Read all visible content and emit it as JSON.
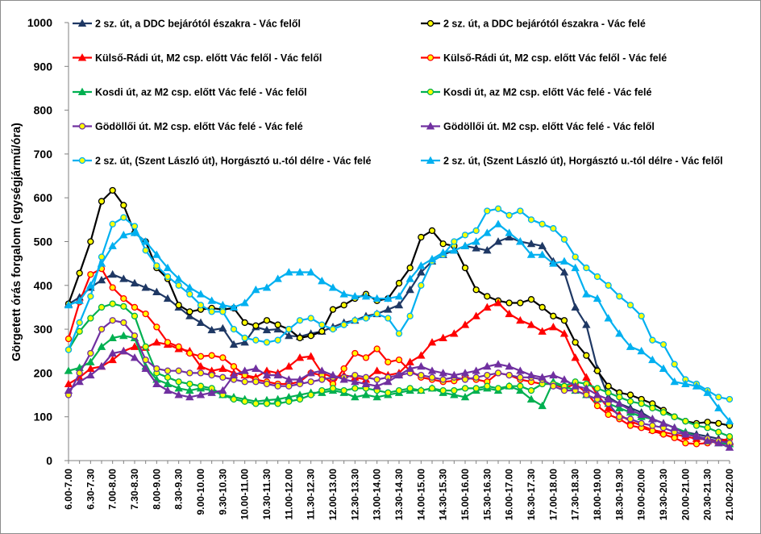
{
  "chart_data": {
    "type": "line",
    "ylabel": "Görgetett órás forgalom (egységjármű/óra)",
    "xlabel": "",
    "ylim": [
      0,
      1000
    ],
    "yticks": [
      0,
      100,
      200,
      300,
      400,
      500,
      600,
      700,
      800,
      900,
      1000
    ],
    "grid": false,
    "legend_position": "top",
    "categories": [
      "6.00-7.00",
      "6.15-7.15",
      "6.30-7.30",
      "6.45-7.45",
      "7.00-8.00",
      "7.15-8.15",
      "7.30-8.30",
      "7.45-8.45",
      "8.00-9.00",
      "8.15-9.15",
      "8.30-9.30",
      "8.45-9.45",
      "9.00-10.00",
      "9.15-10.15",
      "9.30-10.30",
      "9.45-10.45",
      "10.00-11.00",
      "10.15-11.15",
      "10.30-11.30",
      "10.45-11.45",
      "11.00-12.00",
      "11.15-12.15",
      "11.30-12.30",
      "11.45-12.45",
      "12.00-13.00",
      "12.15-13.15",
      "12.30-13.30",
      "12.45-13.45",
      "13.00-14.00",
      "13.15-14.15",
      "13.30-14.30",
      "13.45-14.45",
      "14.00-15.00",
      "14.15-15.15",
      "14.30-15.30",
      "14.45-15.45",
      "15.00-16.00",
      "15.15-16.15",
      "15.30-16.30",
      "15.45-16.45",
      "16.00-17.00",
      "16.15-17.15",
      "16.30-17.30",
      "16.45-17.45",
      "17.00-18.00",
      "17.15-18.15",
      "17.30-18.30",
      "17.45-18.45",
      "18.00-19.00",
      "18.15-19.15",
      "18.30-19.30",
      "18.45-19.45",
      "19.00-20.00",
      "19.15-20.15",
      "19.30-20.30",
      "19.45-20.45",
      "20.00-21.00",
      "20.15-21.15",
      "20.30-21.30",
      "20.45-21.45",
      "21.00-22.00"
    ],
    "x_tick_labels": [
      "6.00-7.00",
      "6.30-7.30",
      "7.00-8.00",
      "7.30-8.30",
      "8.00-9.00",
      "8.30-9.30",
      "9.00-10.00",
      "9.30-10.30",
      "10.00-11.00",
      "10.30-11.30",
      "11.00-12.00",
      "11.30-12.30",
      "12.00-13.00",
      "12.30-13.30",
      "13.00-14.00",
      "13.30-14.30",
      "14.00-15.00",
      "14.30-15.30",
      "15.00-16.00",
      "15.30-16.30",
      "16.00-17.00",
      "16.30-17.30",
      "17.00-18.00",
      "17.30-18.30",
      "18.00-19.00",
      "18.30-19.30",
      "19.00-20.00",
      "19.30-20.30",
      "20.00-21.00",
      "20.30-21.30",
      "21.00-22.00"
    ],
    "series": [
      {
        "name": "2 sz. út, a DDC bejárótól északra - Vác felől",
        "color": "#1F3864",
        "marker": "triangle",
        "marker_fill": "#1F3864",
        "values": [
          357,
          373,
          395,
          412,
          425,
          415,
          405,
          395,
          385,
          370,
          350,
          330,
          315,
          298,
          302,
          265,
          270,
          305,
          298,
          300,
          285,
          283,
          290,
          295,
          305,
          315,
          320,
          330,
          335,
          345,
          355,
          390,
          430,
          455,
          470,
          480,
          490,
          485,
          480,
          500,
          510,
          500,
          495,
          490,
          455,
          430,
          350,
          310,
          210,
          145,
          130,
          120,
          110,
          95,
          85,
          75,
          65,
          60,
          55,
          50,
          45
        ]
      },
      {
        "name": "2 sz. út, a DDC bejárótól északra - Vác felé",
        "color": "#000000",
        "marker": "circle",
        "marker_fill": "#FFFF00",
        "values": [
          358,
          428,
          500,
          592,
          617,
          583,
          520,
          500,
          440,
          415,
          355,
          340,
          345,
          348,
          345,
          348,
          315,
          308,
          320,
          310,
          300,
          280,
          285,
          295,
          345,
          355,
          370,
          380,
          365,
          370,
          405,
          440,
          510,
          525,
          495,
          490,
          440,
          390,
          375,
          365,
          360,
          360,
          368,
          350,
          330,
          320,
          270,
          240,
          205,
          170,
          155,
          150,
          140,
          130,
          115,
          100,
          90,
          85,
          88,
          85,
          80
        ]
      },
      {
        "name": "Külső-Rádi út, M2 csp. előtt Vác felől - Vác felől",
        "color": "#FF0000",
        "marker": "triangle",
        "marker_fill": "#FF0000",
        "values": [
          175,
          190,
          210,
          215,
          230,
          250,
          260,
          258,
          270,
          265,
          255,
          250,
          215,
          205,
          210,
          200,
          195,
          190,
          205,
          200,
          215,
          235,
          238,
          200,
          190,
          195,
          190,
          185,
          205,
          195,
          200,
          225,
          240,
          270,
          280,
          290,
          310,
          330,
          350,
          360,
          335,
          320,
          310,
          295,
          305,
          290,
          235,
          190,
          150,
          120,
          105,
          90,
          80,
          70,
          65,
          60,
          55,
          50,
          48,
          45,
          42
        ]
      },
      {
        "name": "Külső-Rádi út, M2 csp. előtt Vác felől - Vác felé",
        "color": "#FF0000",
        "marker": "circle",
        "marker_fill": "#FFFF00",
        "values": [
          278,
          362,
          425,
          438,
          395,
          370,
          350,
          335,
          305,
          270,
          260,
          245,
          238,
          240,
          235,
          215,
          195,
          185,
          180,
          175,
          175,
          180,
          200,
          195,
          175,
          210,
          245,
          235,
          255,
          225,
          230,
          205,
          190,
          185,
          180,
          182,
          190,
          185,
          180,
          200,
          195,
          185,
          180,
          175,
          175,
          165,
          175,
          155,
          125,
          105,
          95,
          80,
          75,
          68,
          60,
          52,
          40,
          38,
          40,
          45,
          50
        ]
      },
      {
        "name": "Kosdi út, az M2 csp. előtt Vác felé - Vác felől",
        "color": "#00B050",
        "marker": "triangle",
        "marker_fill": "#00B050",
        "values": [
          205,
          212,
          225,
          260,
          280,
          285,
          280,
          215,
          185,
          175,
          165,
          160,
          165,
          160,
          150,
          145,
          140,
          135,
          138,
          140,
          145,
          150,
          155,
          155,
          160,
          155,
          145,
          150,
          145,
          150,
          155,
          160,
          160,
          165,
          155,
          150,
          145,
          160,
          165,
          160,
          170,
          160,
          140,
          125,
          180,
          170,
          160,
          150,
          140,
          130,
          120,
          110,
          100,
          95,
          85,
          75,
          65,
          55,
          45,
          40,
          38
        ]
      },
      {
        "name": "Kosdi út, az M2 csp. előtt Vác felé - Vác felé",
        "color": "#00B050",
        "marker": "circle",
        "marker_fill": "#FFFF00",
        "values": [
          253,
          295,
          325,
          350,
          358,
          352,
          330,
          260,
          200,
          190,
          180,
          175,
          170,
          165,
          150,
          140,
          135,
          130,
          130,
          130,
          135,
          140,
          150,
          160,
          165,
          160,
          165,
          165,
          160,
          155,
          160,
          165,
          160,
          165,
          160,
          160,
          165,
          165,
          170,
          165,
          170,
          170,
          160,
          175,
          175,
          170,
          180,
          175,
          165,
          155,
          145,
          135,
          130,
          120,
          110,
          100,
          90,
          80,
          75,
          65,
          55
        ]
      },
      {
        "name": "Gödöllői út. M2 csp. előtt Vác felé - Vác felé",
        "color": "#7030A0",
        "marker": "circle",
        "marker_fill": "#FFFF00",
        "values": [
          150,
          200,
          245,
          300,
          320,
          315,
          285,
          230,
          210,
          205,
          205,
          200,
          200,
          195,
          190,
          185,
          180,
          180,
          175,
          170,
          170,
          175,
          180,
          185,
          190,
          190,
          195,
          190,
          185,
          190,
          195,
          200,
          195,
          190,
          185,
          190,
          185,
          190,
          195,
          200,
          195,
          190,
          190,
          185,
          170,
          160,
          160,
          150,
          140,
          130,
          100,
          95,
          85,
          80,
          75,
          65,
          60,
          55,
          50,
          45,
          40
        ]
      },
      {
        "name": "Gödöllői út. M2 csp. előtt Vác felé - Vác felől",
        "color": "#7030A0",
        "marker": "triangle",
        "marker_fill": "#7030A0",
        "values": [
          160,
          180,
          195,
          215,
          245,
          250,
          235,
          210,
          175,
          160,
          150,
          145,
          150,
          155,
          160,
          195,
          205,
          210,
          195,
          195,
          185,
          185,
          200,
          205,
          195,
          185,
          180,
          175,
          170,
          180,
          195,
          210,
          215,
          205,
          200,
          195,
          200,
          205,
          215,
          220,
          215,
          205,
          195,
          190,
          195,
          185,
          170,
          165,
          150,
          140,
          130,
          115,
          105,
          95,
          85,
          75,
          60,
          55,
          45,
          40,
          30
        ]
      },
      {
        "name": "2 sz. út, (Szent László út), Horgásztó u.-tól délre - Vác felé",
        "color": "#00B0F0",
        "marker": "circle",
        "marker_fill": "#FFFF00",
        "values": [
          253,
          315,
          375,
          465,
          540,
          555,
          535,
          480,
          445,
          420,
          400,
          380,
          355,
          340,
          340,
          300,
          280,
          275,
          270,
          275,
          300,
          320,
          325,
          310,
          300,
          310,
          320,
          325,
          335,
          325,
          290,
          330,
          400,
          455,
          470,
          500,
          515,
          525,
          570,
          575,
          560,
          570,
          550,
          540,
          530,
          505,
          465,
          440,
          420,
          400,
          375,
          355,
          330,
          275,
          265,
          220,
          185,
          175,
          160,
          145,
          140
        ]
      },
      {
        "name": "2 sz. út, (Szent László út), Horgásztó u.-tól délre - Vác felől",
        "color": "#00B0F0",
        "marker": "triangle",
        "marker_fill": "#00B0F0",
        "values": [
          355,
          365,
          400,
          450,
          490,
          515,
          520,
          500,
          470,
          440,
          415,
          395,
          380,
          365,
          355,
          350,
          360,
          390,
          395,
          415,
          430,
          430,
          430,
          410,
          395,
          380,
          375,
          375,
          370,
          370,
          375,
          415,
          445,
          460,
          475,
          480,
          490,
          500,
          520,
          540,
          520,
          500,
          470,
          470,
          450,
          455,
          440,
          380,
          370,
          325,
          290,
          260,
          250,
          230,
          210,
          180,
          175,
          170,
          155,
          120,
          90
        ]
      }
    ]
  }
}
